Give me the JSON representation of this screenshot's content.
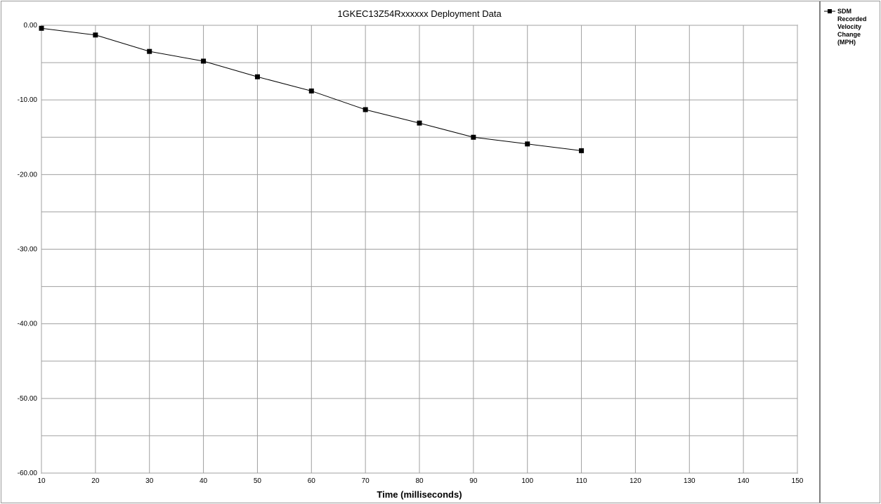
{
  "chart_data": {
    "type": "line",
    "title": "1GKEC13Z54Rxxxxxx  Deployment Data",
    "xlabel": "Time (milliseconds)",
    "ylabel": "",
    "xlim": [
      10,
      150
    ],
    "ylim": [
      -60,
      0
    ],
    "x_ticks": [
      10,
      20,
      30,
      40,
      50,
      60,
      70,
      80,
      90,
      100,
      110,
      120,
      130,
      140,
      150
    ],
    "y_ticks": [
      0,
      -5,
      -10,
      -15,
      -20,
      -25,
      -30,
      -35,
      -40,
      -45,
      -50,
      -55,
      -60
    ],
    "y_tick_labels": [
      "0.00",
      "-10.00",
      "-20.00",
      "-30.00",
      "-40.00",
      "-50.00",
      "-60.00"
    ],
    "y_tick_label_values": [
      0,
      -10,
      -20,
      -30,
      -40,
      -50,
      -60
    ],
    "grid": true,
    "legend_position": "right",
    "series": [
      {
        "name": "SDM Recorded Velocity Change (MPH)",
        "legend_lines": [
          "SDM",
          "Recorded",
          "Velocity",
          "Change",
          "(MPH)"
        ],
        "color": "#000000",
        "marker": "square",
        "x": [
          10,
          20,
          30,
          40,
          50,
          60,
          70,
          80,
          90,
          100,
          110
        ],
        "y": [
          -0.4,
          -1.3,
          -3.5,
          -4.8,
          -6.9,
          -8.8,
          -11.3,
          -13.1,
          -15.0,
          -15.9,
          -16.8
        ]
      }
    ]
  }
}
